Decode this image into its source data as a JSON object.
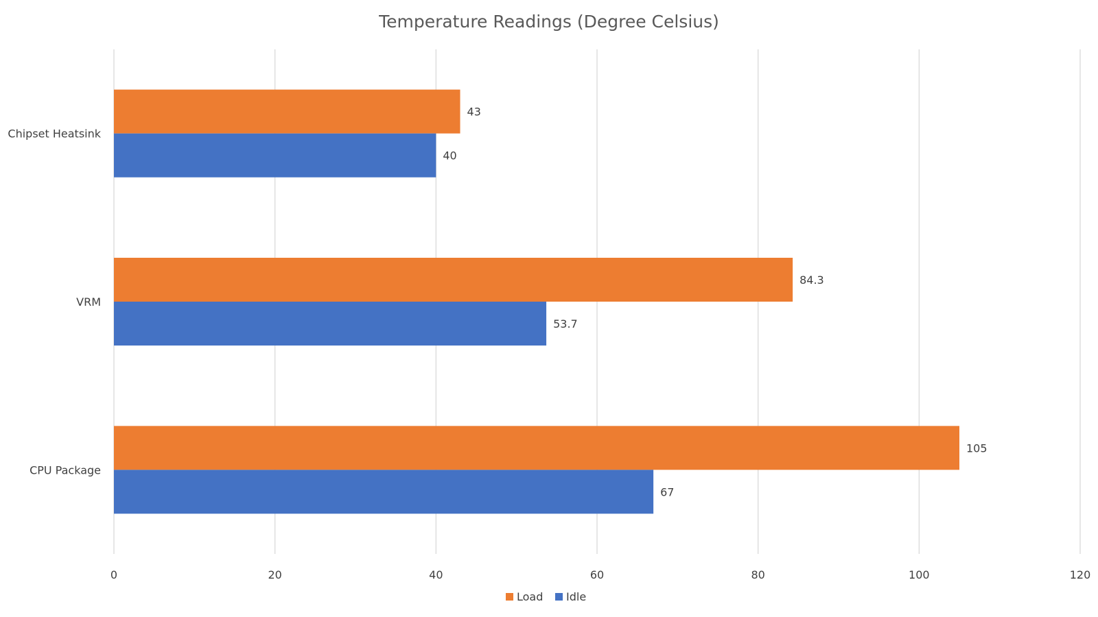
{
  "chart_data": {
    "type": "bar",
    "orientation": "horizontal",
    "title": "Temperature Readings (Degree Celsius)",
    "xlabel": "",
    "ylabel": "",
    "categories": [
      "Chipset Heatsink",
      "VRM",
      "CPU Package"
    ],
    "series": [
      {
        "name": "Load",
        "color": "#ED7D31",
        "values": [
          43,
          84.3,
          105
        ],
        "labels": [
          "43",
          "84.3",
          "105"
        ]
      },
      {
        "name": "Idle",
        "color": "#4472C4",
        "values": [
          40,
          53.7,
          67
        ],
        "labels": [
          "40",
          "53.7",
          "67"
        ]
      }
    ],
    "xlim": [
      0,
      120
    ],
    "ticks": [
      0,
      20,
      40,
      60,
      80,
      100,
      120
    ],
    "tick_labels": [
      "0",
      "20",
      "40",
      "60",
      "80",
      "100",
      "120"
    ],
    "grid": true,
    "legend": "bottom"
  }
}
